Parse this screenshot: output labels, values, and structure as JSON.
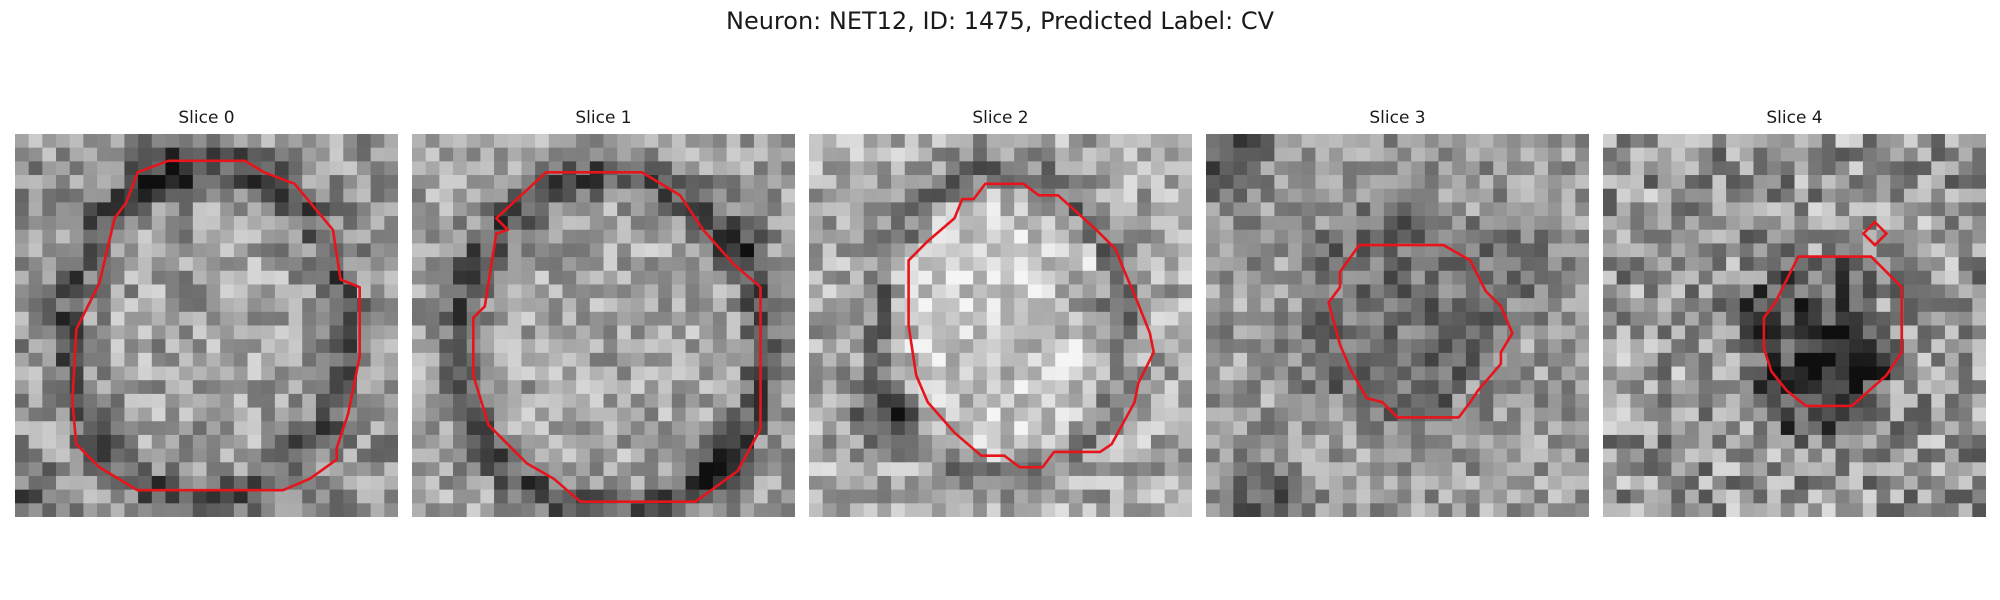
{
  "figure": {
    "title": "Neuron: NET12, ID: 1475, Predicted Label: CV"
  },
  "colors": {
    "outline": "#e8141c",
    "background": "#ffffff"
  },
  "panels": [
    {
      "title": "Slice 0"
    },
    {
      "title": "Slice 1"
    },
    {
      "title": "Slice 2"
    },
    {
      "title": "Slice 3"
    },
    {
      "title": "Slice 4"
    }
  ]
}
